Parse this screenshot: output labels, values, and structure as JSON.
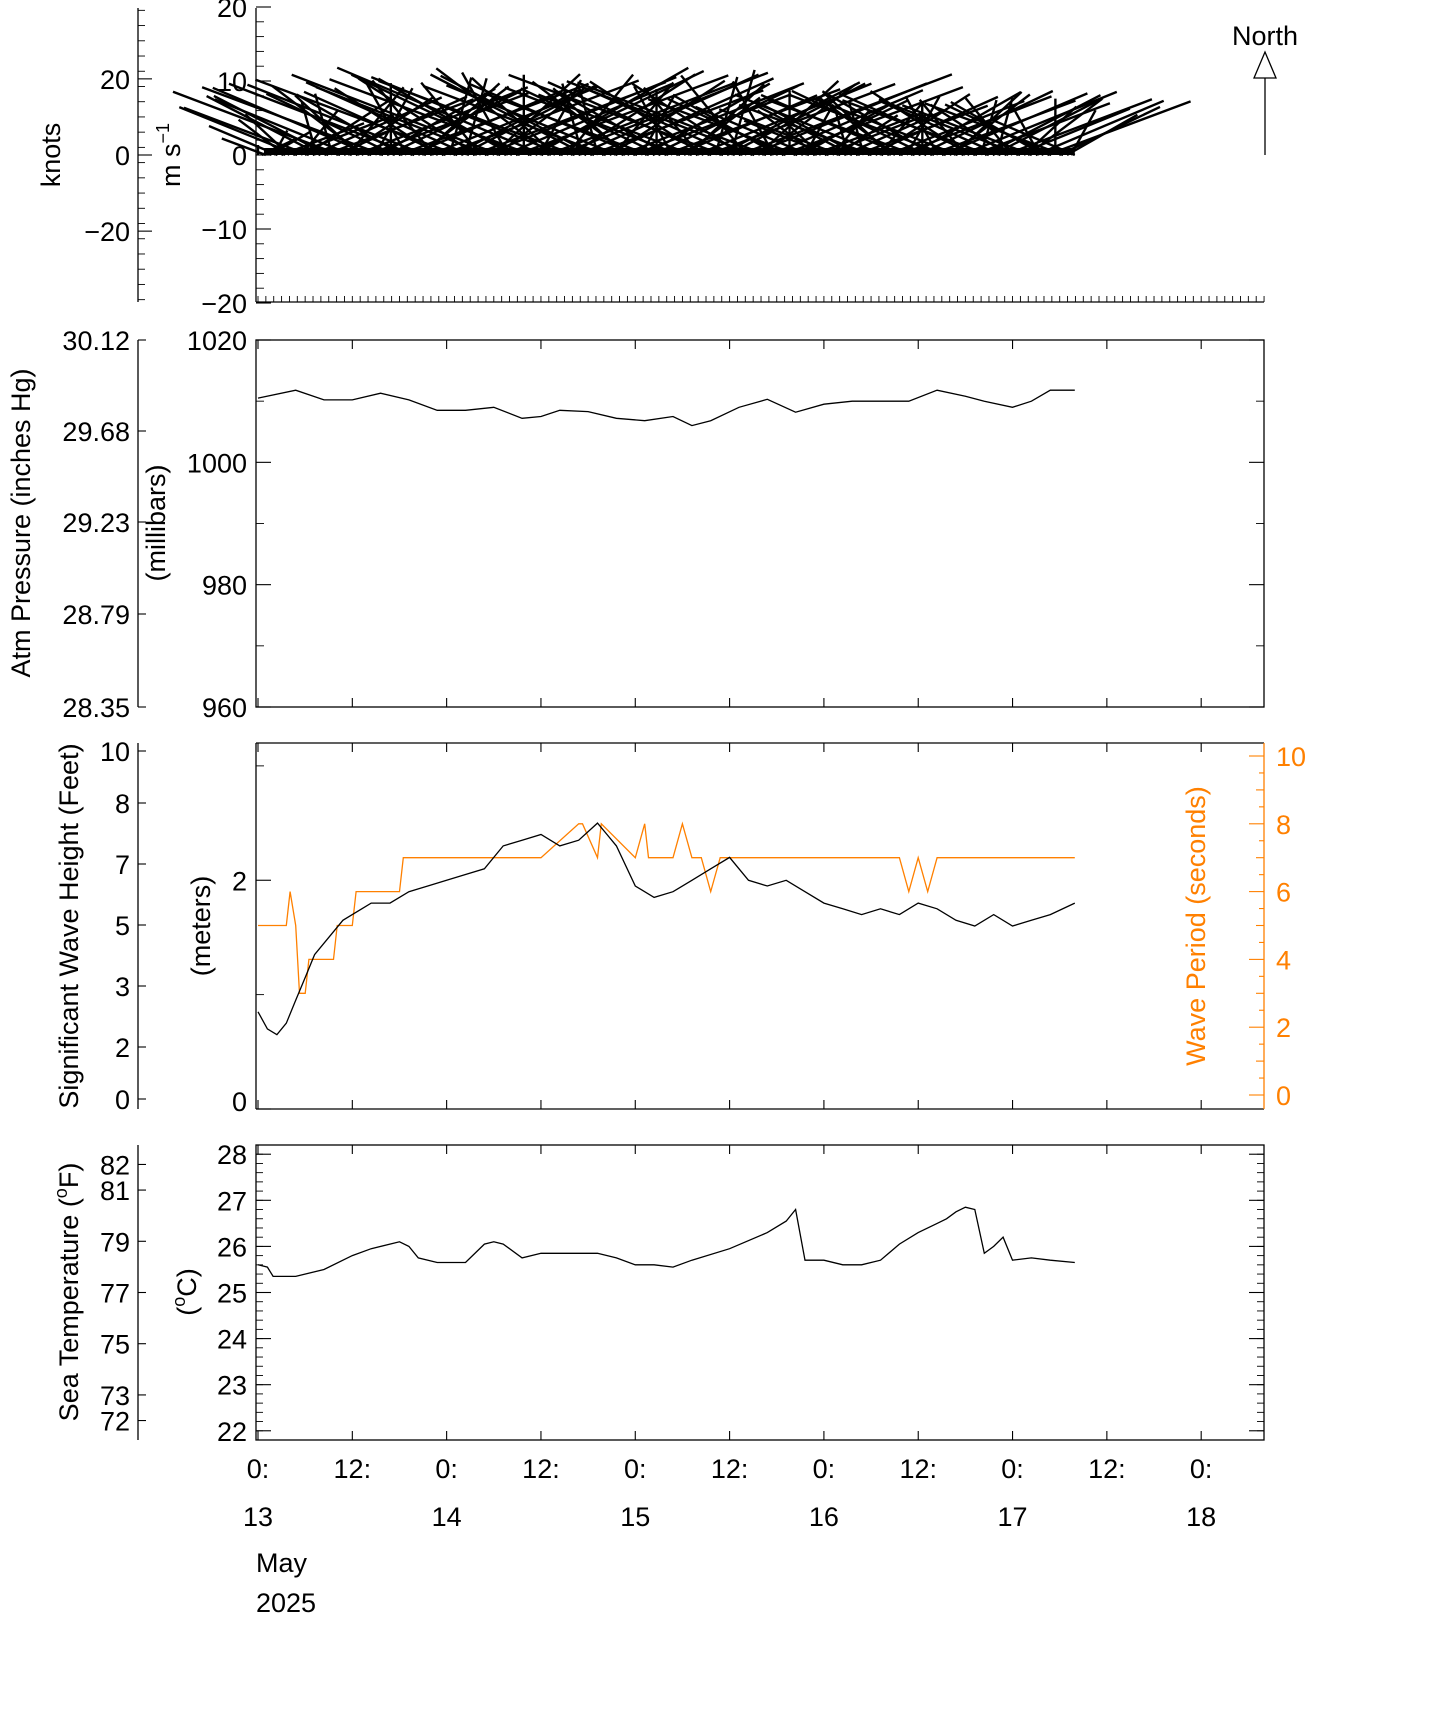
{
  "chart_data": [
    {
      "type": "line",
      "panel": "wind",
      "ylabel_outer": "knots",
      "ylabel_inner": "m s",
      "ylabel_inner_sup": "−1",
      "ylim": [
        -21,
        21
      ],
      "yticks_inner": [
        "20",
        "10",
        "0",
        "−10",
        "−20"
      ],
      "yticks_outer": [
        "20",
        "0",
        "−20"
      ],
      "north_label": "North",
      "x_days": [
        0.0,
        0.25,
        0.5,
        0.75,
        1.0,
        1.25,
        1.5,
        1.75,
        2.0,
        2.25,
        2.5,
        2.75,
        3.0,
        3.25,
        3.5,
        3.75,
        4.0,
        4.25,
        4.33
      ],
      "speed_ms": [
        1.5,
        7,
        8.5,
        9,
        9.5,
        10,
        11,
        10,
        9,
        8.5,
        10.5,
        9,
        5,
        7.5,
        8,
        8,
        7,
        7,
        5
      ]
    },
    {
      "type": "line",
      "panel": "pressure",
      "ylabel_outer": "Atm Pressure (inches Hg)",
      "ylabel_inner": "(millibars)",
      "ylim": [
        960,
        1020
      ],
      "yticks_inner": [
        "1020",
        "1000",
        "980",
        "960"
      ],
      "yticks_outer": [
        "30.12",
        "29.68",
        "29.23",
        "28.79",
        "28.35"
      ],
      "x_days": [
        0.0,
        0.2,
        0.35,
        0.5,
        0.65,
        0.8,
        0.95,
        1.1,
        1.25,
        1.4,
        1.5,
        1.6,
        1.75,
        1.9,
        2.05,
        2.2,
        2.3,
        2.4,
        2.55,
        2.7,
        2.85,
        3.0,
        3.15,
        3.3,
        3.45,
        3.6,
        3.75,
        3.85,
        4.0,
        4.1,
        4.2,
        4.33
      ],
      "pressure_mb": [
        1010.5,
        1011.8,
        1010.2,
        1010.2,
        1011.3,
        1010.2,
        1008.5,
        1008.5,
        1009.0,
        1007.2,
        1007.5,
        1008.5,
        1008.3,
        1007.2,
        1006.8,
        1007.5,
        1006.0,
        1006.8,
        1009.0,
        1010.3,
        1008.2,
        1009.5,
        1010.0,
        1010.0,
        1010.0,
        1011.8,
        1010.8,
        1010.0,
        1009.0,
        1010.0,
        1011.8,
        1011.8
      ]
    },
    {
      "type": "line",
      "panel": "waves",
      "ylabel_outer": "Significant Wave Height (Feet)",
      "ylabel_inner": "(meters)",
      "ylabel_right": "Wave Period (seconds)",
      "ylim_m": [
        0,
        3.2
      ],
      "yticks_inner": [
        "2"
      ],
      "yticks_outer": [
        "10",
        "8",
        "7",
        "5",
        "3",
        "2",
        "0"
      ],
      "yticks_right": [
        "10",
        "8",
        "6",
        "4",
        "2",
        "0"
      ],
      "series": [
        {
          "name": "",
          "unit": "m",
          "x_days": [
            0.0,
            0.05,
            0.1,
            0.15,
            0.2,
            0.25,
            0.3,
            0.35,
            0.4,
            0.45,
            0.5,
            0.55,
            0.6,
            0.7,
            0.8,
            0.9,
            1.0,
            1.1,
            1.2,
            1.3,
            1.4,
            1.5,
            1.6,
            1.7,
            1.8,
            1.85,
            1.9,
            2.0,
            2.1,
            2.2,
            2.3,
            2.4,
            2.5,
            2.6,
            2.7,
            2.8,
            2.9,
            3.0,
            3.1,
            3.2,
            3.3,
            3.4,
            3.5,
            3.6,
            3.7,
            3.8,
            3.9,
            4.0,
            4.1,
            4.2,
            4.33
          ],
          "values": [
            0.85,
            0.7,
            0.65,
            0.75,
            0.95,
            1.15,
            1.35,
            1.45,
            1.55,
            1.65,
            1.7,
            1.75,
            1.8,
            1.8,
            1.9,
            1.95,
            2.0,
            2.05,
            2.1,
            2.3,
            2.35,
            2.4,
            2.3,
            2.35,
            2.5,
            2.4,
            2.3,
            1.95,
            1.85,
            1.9,
            2.0,
            2.1,
            2.2,
            2.0,
            1.95,
            2.0,
            1.9,
            1.8,
            1.75,
            1.7,
            1.75,
            1.7,
            1.8,
            1.75,
            1.65,
            1.6,
            1.7,
            1.6,
            1.65,
            1.7,
            1.8
          ]
        },
        {
          "name": "Wave Period (seconds)",
          "unit": "s",
          "color": "#ff8000",
          "x_days": [
            0.0,
            0.15,
            0.17,
            0.2,
            0.22,
            0.25,
            0.27,
            0.4,
            0.42,
            0.5,
            0.52,
            0.6,
            0.62,
            0.75,
            0.77,
            0.9,
            0.92,
            1.2,
            1.3,
            1.5,
            1.7,
            1.72,
            1.8,
            1.82,
            2.0,
            2.05,
            2.07,
            2.2,
            2.25,
            2.3,
            2.35,
            2.4,
            2.45,
            2.5,
            2.55,
            2.6,
            3.4,
            3.45,
            3.5,
            3.55,
            3.6,
            4.33
          ],
          "values": [
            5,
            5,
            6,
            5,
            3,
            3,
            4,
            4,
            5,
            5,
            6,
            6,
            6,
            6,
            7,
            7,
            7,
            7,
            7,
            7,
            8,
            8,
            7,
            8,
            7,
            8,
            7,
            7,
            8,
            7,
            7,
            6,
            7,
            7,
            7,
            7,
            7,
            6,
            7,
            6,
            7,
            7
          ]
        }
      ]
    },
    {
      "type": "line",
      "panel": "sea_temperature",
      "ylabel_outer": "Sea Temperature (",
      "ylabel_outer_sup": "o",
      "ylabel_outer_tail": "F)",
      "ylabel_inner": "(",
      "ylabel_inner_sup": "o",
      "ylabel_inner_tail": "C)",
      "ylim": [
        21.8,
        28.2
      ],
      "yticks_inner": [
        "28",
        "27",
        "26",
        "25",
        "24",
        "23",
        "22"
      ],
      "yticks_outer": [
        "82",
        "81",
        "79",
        "77",
        "75",
        "73",
        "72"
      ],
      "x_days": [
        0.0,
        0.05,
        0.08,
        0.2,
        0.35,
        0.5,
        0.6,
        0.75,
        0.8,
        0.85,
        0.95,
        1.0,
        1.1,
        1.2,
        1.25,
        1.3,
        1.4,
        1.5,
        1.6,
        1.8,
        1.9,
        2.0,
        2.1,
        2.2,
        2.3,
        2.5,
        2.7,
        2.8,
        2.85,
        2.9,
        3.0,
        3.1,
        3.2,
        3.3,
        3.4,
        3.5,
        3.6,
        3.65,
        3.7,
        3.75,
        3.8,
        3.85,
        3.9,
        3.95,
        4.0,
        4.1,
        4.2,
        4.33
      ],
      "values": [
        25.6,
        25.55,
        25.35,
        25.35,
        25.5,
        25.8,
        25.95,
        26.1,
        26.0,
        25.75,
        25.65,
        25.65,
        25.65,
        26.05,
        26.1,
        26.05,
        25.75,
        25.85,
        25.85,
        25.85,
        25.75,
        25.6,
        25.6,
        25.55,
        25.7,
        25.95,
        26.3,
        26.55,
        26.8,
        25.7,
        25.7,
        25.6,
        25.6,
        25.7,
        26.05,
        26.3,
        26.5,
        26.6,
        26.75,
        26.85,
        26.8,
        25.85,
        26.0,
        26.2,
        25.7,
        25.75,
        25.7,
        25.65
      ]
    }
  ],
  "xaxis": {
    "ticks": [
      {
        "time": "0:",
        "day": "13"
      },
      {
        "time": "12:",
        "day": ""
      },
      {
        "time": "0:",
        "day": "14"
      },
      {
        "time": "12:",
        "day": ""
      },
      {
        "time": "0:",
        "day": "15"
      },
      {
        "time": "12:",
        "day": ""
      },
      {
        "time": "0:",
        "day": "16"
      },
      {
        "time": "12:",
        "day": ""
      },
      {
        "time": "0:",
        "day": "17"
      },
      {
        "time": "12:",
        "day": ""
      },
      {
        "time": "0:",
        "day": "18"
      }
    ],
    "month": "May",
    "year": "2025"
  }
}
